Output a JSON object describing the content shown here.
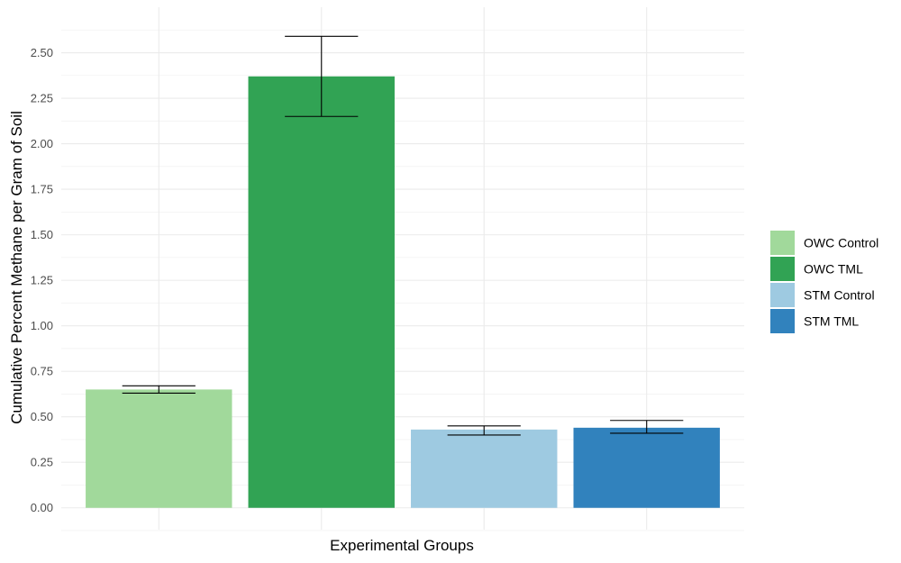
{
  "chart_data": {
    "type": "bar",
    "categories": [
      "OWC Control",
      "OWC TML",
      "STM Control",
      "STM TML"
    ],
    "values": [
      0.65,
      2.37,
      0.43,
      0.44
    ],
    "error_low": [
      0.63,
      2.15,
      0.4,
      0.41
    ],
    "error_high": [
      0.67,
      2.59,
      0.45,
      0.48
    ],
    "colors": [
      "#a1d99b",
      "#31a354",
      "#9ecae1",
      "#3182bd"
    ],
    "xlabel": "Experimental Groups",
    "ylabel": "Cumulative Percent Methane per Gram of Soil",
    "ylim": [
      -0.12,
      2.75
    ],
    "yticks": [
      "0.00",
      "0.25",
      "0.50",
      "0.75",
      "1.00",
      "1.25",
      "1.50",
      "1.75",
      "2.00",
      "2.25",
      "2.50"
    ],
    "grid": true,
    "legend_position": "right",
    "legend": [
      "OWC Control",
      "OWC TML",
      "STM Control",
      "STM TML"
    ]
  }
}
